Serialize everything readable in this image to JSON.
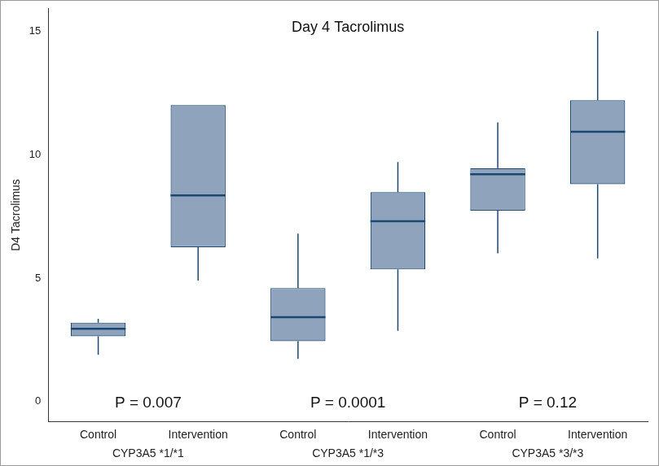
{
  "chart_data": {
    "type": "boxplot",
    "title": "Day 4 Tacrolimus",
    "y_label": "D4 Tacrolimus",
    "categories": [
      "Control",
      "Intervention",
      "Control",
      "Intervention",
      "Control",
      "Intervention"
    ],
    "groups": [
      "CYP3A5 *1/*1",
      "CYP3A5 *1/*3",
      "CYP3A5 *3/*3"
    ],
    "annotations": [
      "P = 0.007",
      "P = 0.0001",
      "P = 0.12"
    ],
    "boxes": [
      {
        "min": 1.9,
        "q1": 2.65,
        "median": 2.95,
        "q3": 3.2,
        "max": 3.35
      },
      {
        "min": 4.9,
        "q1": 6.25,
        "median": 8.35,
        "q3": 12.0,
        "max": 12.0
      },
      {
        "min": 1.73,
        "q1": 2.45,
        "median": 3.42,
        "q3": 4.6,
        "max": 6.8
      },
      {
        "min": 2.87,
        "q1": 5.35,
        "median": 7.3,
        "q3": 8.48,
        "max": 9.7
      },
      {
        "min": 6.0,
        "q1": 7.73,
        "median": 9.2,
        "q3": 9.45,
        "max": 11.3
      },
      {
        "min": 5.8,
        "q1": 8.8,
        "median": 10.92,
        "q3": 12.2,
        "max": 15.0
      }
    ],
    "color": "#8fa3bc",
    "ylim": [
      -0.8,
      15.9
    ],
    "yticks": [
      0,
      5,
      10,
      15
    ],
    "grid": false
  }
}
